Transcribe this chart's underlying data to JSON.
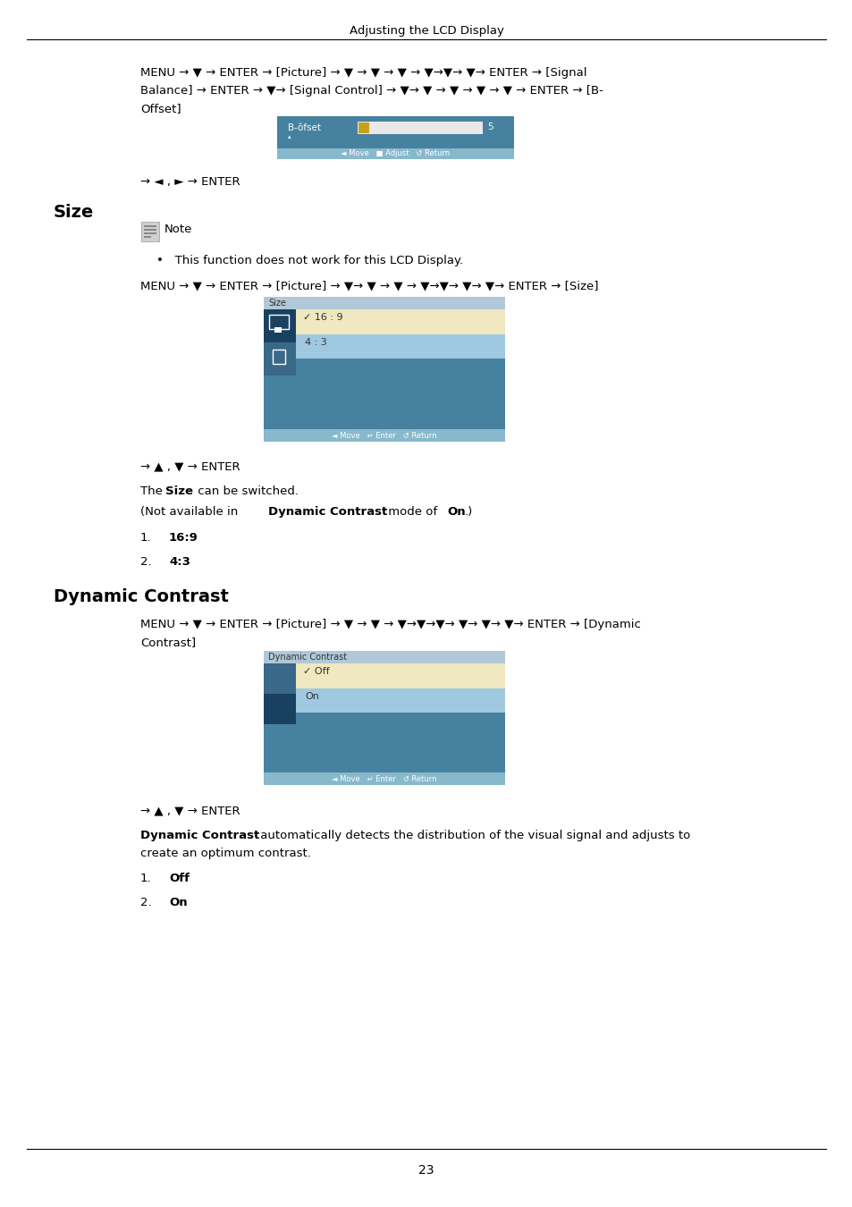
{
  "page_title": "Adjusting the LCD Display",
  "page_number": "23",
  "bg_color": "#ffffff",
  "menu1_line1": "MENU → ▼ → ENTER → [Picture] → ▼ → ▼ → ▼ → ▼→▼→ ▼→ ENTER → [Signal",
  "menu1_line2": "Balance] → ENTER → ▼→ [Signal Control] → ▼→ ▼ → ▼ → ▼ → ▼ → ENTER → [B-",
  "menu1_line3": "Offset]",
  "nav1": "→ ◄ , ► → ENTER",
  "size_heading": "Size",
  "note_label": "Note",
  "note_bullet": "This function does not work for this LCD Display.",
  "size_menu": "MENU → ▼ → ENTER → [Picture] → ▼→ ▼ → ▼ → ▼→▼→ ▼→ ▼→ ENTER → [Size]",
  "size_nav": "→ ▲ , ▼ → ENTER",
  "dc_heading": "Dynamic Contrast",
  "dc_menu_line1": "MENU → ▼ → ENTER → [Picture] → ▼ → ▼ → ▼→▼→▼→ ▼→ ▼→ ▼→ ENTER → [Dynamic",
  "dc_menu_line2": "Contrast]",
  "dc_nav": "→ ▲ , ▼ → ENTER",
  "ss_bg": "#4682a0",
  "ss_header": "#5a90b8",
  "ss_titlebar": "#b0c8d8",
  "ss_selected": "#f0e8c0",
  "ss_item2": "#a0c8e0",
  "ss_dark": "#2a5878",
  "ss_footer": "#88b8cc",
  "ss_icon_sel": "#1a4060",
  "ss_icon_normal": "#3a6888"
}
